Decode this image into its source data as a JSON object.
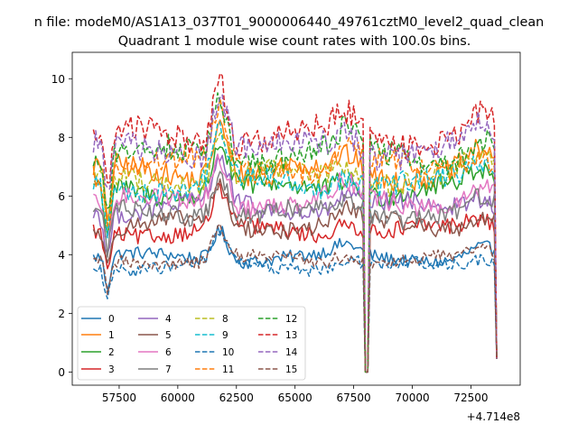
{
  "chart_data": {
    "type": "line",
    "suptitle": "n file: modeM0/AS1A13_037T01_9000006440_49761cztM0_level2_quad_clean",
    "title": "Quadrant 1 module wise count rates with 100.0s bins.",
    "xlabel": "",
    "ylabel": "",
    "x_offset_label": "+4.714e8",
    "xlim": [
      55500,
      74600
    ],
    "ylim": [
      -0.45,
      10.9
    ],
    "x_range": [
      56400,
      73600
    ],
    "gap": [
      67900,
      68200
    ],
    "xticks": [
      57500,
      60000,
      62500,
      65000,
      67500,
      70000,
      72500
    ],
    "xtick_labels": [
      "57500",
      "60000",
      "62500",
      "65000",
      "67500",
      "70000",
      "72500"
    ],
    "yticks": [
      0,
      2,
      4,
      6,
      8,
      10
    ],
    "ytick_labels": [
      "0",
      "2",
      "4",
      "6",
      "8",
      "10"
    ],
    "legend_position": "lower-left",
    "series": [
      {
        "name": "0",
        "color": "#1f77b4",
        "style": "solid",
        "base": 3.9
      },
      {
        "name": "1",
        "color": "#ff7f0e",
        "style": "solid",
        "base": 6.8
      },
      {
        "name": "2",
        "color": "#2ca02c",
        "style": "solid",
        "base": 6.2
      },
      {
        "name": "3",
        "color": "#d62728",
        "style": "solid",
        "base": 4.8
      },
      {
        "name": "4",
        "color": "#9467bd",
        "style": "solid",
        "base": 5.6
      },
      {
        "name": "5",
        "color": "#8c564b",
        "style": "solid",
        "base": 5.0
      },
      {
        "name": "6",
        "color": "#e377c2",
        "style": "solid",
        "base": 5.8
      },
      {
        "name": "7",
        "color": "#7f7f7f",
        "style": "solid",
        "base": 5.4
      },
      {
        "name": "8",
        "color": "#bcbd22",
        "style": "dashed",
        "base": 6.6
      },
      {
        "name": "9",
        "color": "#17becf",
        "style": "dashed",
        "base": 6.4
      },
      {
        "name": "10",
        "color": "#1f77b4",
        "style": "dashed",
        "base": 3.6
      },
      {
        "name": "11",
        "color": "#ff7f0e",
        "style": "dashed",
        "base": 7.0
      },
      {
        "name": "12",
        "color": "#2ca02c",
        "style": "dashed",
        "base": 7.4
      },
      {
        "name": "13",
        "color": "#d62728",
        "style": "dashed",
        "base": 8.0
      },
      {
        "name": "14",
        "color": "#9467bd",
        "style": "dashed",
        "base": 7.6
      },
      {
        "name": "15",
        "color": "#8c564b",
        "style": "dashed",
        "base": 3.8
      }
    ]
  }
}
